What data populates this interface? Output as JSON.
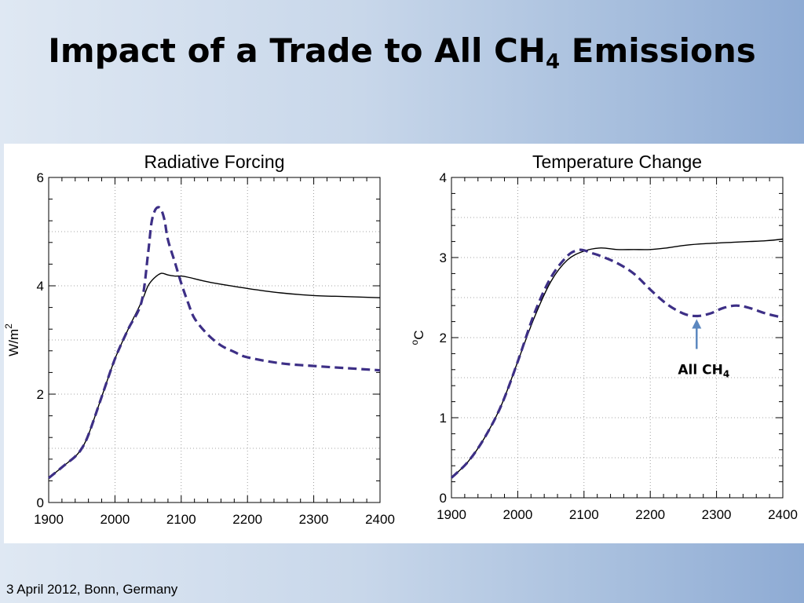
{
  "slide": {
    "title_main": "Impact of a Trade to All CH",
    "title_sub": "4",
    "title_tail": " Emissions",
    "footer": "3 April 2012, Bonn, Germany"
  },
  "colors": {
    "solid_line": "#000000",
    "dashed_line": "#3d2f86",
    "arrow": "#5b87bf"
  },
  "chart_data": [
    {
      "type": "line",
      "title": "Radiative Forcing",
      "ylabel_main": "W/m",
      "ylabel_sup": "2",
      "xlim": [
        1900,
        2400
      ],
      "ylim": [
        0,
        6
      ],
      "xticks": [
        1900,
        2000,
        2100,
        2200,
        2300,
        2400
      ],
      "yticks": [
        0,
        2,
        4,
        6
      ],
      "grid": true,
      "series": [
        {
          "style": "solid",
          "x": [
            1900,
            1920,
            1940,
            1950,
            1960,
            1980,
            2000,
            2020,
            2040,
            2050,
            2060,
            2070,
            2080,
            2090,
            2100,
            2110,
            2130,
            2150,
            2200,
            2250,
            2300,
            2350,
            2400
          ],
          "y": [
            0.45,
            0.65,
            0.85,
            1.0,
            1.25,
            1.95,
            2.65,
            3.2,
            3.7,
            4.0,
            4.15,
            4.23,
            4.2,
            4.18,
            4.18,
            4.16,
            4.1,
            4.05,
            3.95,
            3.87,
            3.82,
            3.8,
            3.78
          ]
        },
        {
          "style": "dashed",
          "x": [
            1900,
            1920,
            1940,
            1950,
            1960,
            1980,
            2000,
            2020,
            2040,
            2050,
            2055,
            2060,
            2065,
            2070,
            2075,
            2080,
            2090,
            2100,
            2110,
            2120,
            2140,
            2160,
            2180,
            2200,
            2250,
            2300,
            2350,
            2400
          ],
          "y": [
            0.45,
            0.65,
            0.85,
            1.0,
            1.25,
            1.95,
            2.65,
            3.2,
            3.7,
            4.6,
            5.15,
            5.38,
            5.45,
            5.4,
            5.2,
            4.85,
            4.45,
            4.05,
            3.7,
            3.4,
            3.1,
            2.9,
            2.78,
            2.68,
            2.57,
            2.52,
            2.48,
            2.44
          ]
        }
      ]
    },
    {
      "type": "line",
      "title": "Temperature Change",
      "ylabel_main": "C",
      "ylabel_sup": "o",
      "xlim": [
        1900,
        2400
      ],
      "ylim": [
        0,
        4
      ],
      "xticks": [
        1900,
        2000,
        2100,
        2200,
        2300,
        2400
      ],
      "yticks": [
        0,
        1,
        2,
        3,
        4
      ],
      "grid": true,
      "annotation": {
        "text_main": "All CH",
        "text_sub": "4",
        "x": 2270,
        "y": 2.27
      },
      "series": [
        {
          "style": "solid",
          "x": [
            1900,
            1925,
            1950,
            1975,
            2000,
            2025,
            2050,
            2075,
            2100,
            2125,
            2150,
            2175,
            2200,
            2225,
            2250,
            2275,
            2300,
            2325,
            2350,
            2375,
            2400
          ],
          "y": [
            0.25,
            0.45,
            0.75,
            1.15,
            1.7,
            2.25,
            2.7,
            2.97,
            3.08,
            3.12,
            3.1,
            3.1,
            3.1,
            3.12,
            3.15,
            3.17,
            3.18,
            3.19,
            3.2,
            3.21,
            3.23
          ]
        },
        {
          "style": "dashed",
          "x": [
            1900,
            1925,
            1950,
            1975,
            2000,
            2025,
            2050,
            2075,
            2090,
            2100,
            2110,
            2125,
            2150,
            2175,
            2200,
            2225,
            2250,
            2270,
            2290,
            2310,
            2330,
            2350,
            2375,
            2400
          ],
          "y": [
            0.25,
            0.45,
            0.75,
            1.15,
            1.7,
            2.3,
            2.75,
            3.02,
            3.09,
            3.09,
            3.06,
            3.02,
            2.93,
            2.8,
            2.6,
            2.42,
            2.3,
            2.27,
            2.3,
            2.37,
            2.4,
            2.37,
            2.3,
            2.25
          ]
        }
      ]
    }
  ]
}
